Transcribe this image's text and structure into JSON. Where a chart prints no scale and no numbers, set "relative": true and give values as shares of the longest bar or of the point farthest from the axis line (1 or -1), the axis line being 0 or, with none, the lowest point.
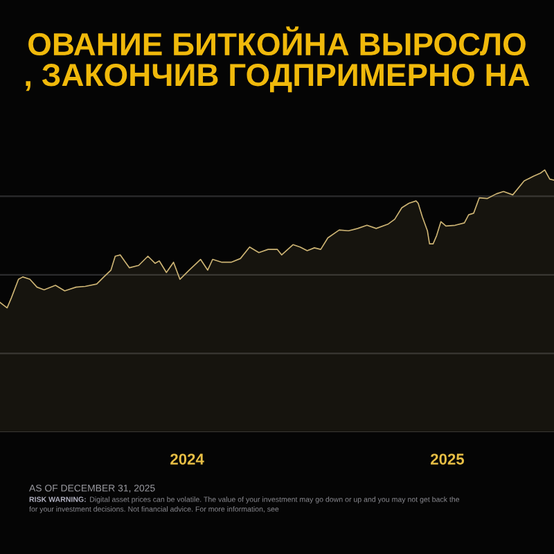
{
  "chart_data": {
    "type": "area",
    "title": "ОВАНИЕ БИТКОЙНА ВЫРОСЛО\n, ЗАКОНЧИВ ГОДПРИМЕРНО НА",
    "annotations": [
      "AS OF DECEMBER 31, 2025",
      "RISK WARNING:",
      "Digital asset prices can be volatile. The value of your investment may go down or up and you may not get back the",
      "for your investment decisions. Not financial advice. For more information, see"
    ],
    "relative": true,
    "color": "#cdb474",
    "grid": "y",
    "tick_labels": "x",
    "xlim": [
      "2023-04-13",
      "2025-05-31"
    ],
    "xticks": [
      "2024",
      "2025"
    ],
    "x": [
      "2023-04-13",
      "2023-04-23",
      "2023-04-29",
      "2023-05-09",
      "2023-05-15",
      "2023-05-25",
      "2023-06-04",
      "2023-06-14",
      "2023-06-30",
      "2023-07-13",
      "2023-07-29",
      "2023-08-11",
      "2023-08-27",
      "2023-09-06",
      "2023-09-16",
      "2023-09-22",
      "2023-09-29",
      "2023-10-05",
      "2023-10-12",
      "2023-10-25",
      "2023-11-07",
      "2023-11-17",
      "2023-11-23",
      "2023-12-03",
      "2023-12-13",
      "2023-12-22",
      "2024-01-04",
      "2024-01-20",
      "2024-01-30",
      "2024-02-06",
      "2024-02-19",
      "2024-03-03",
      "2024-03-16",
      "2024-03-29",
      "2024-04-11",
      "2024-04-24",
      "2024-05-07",
      "2024-05-13",
      "2024-05-29",
      "2024-06-08",
      "2024-06-18",
      "2024-06-28",
      "2024-07-07",
      "2024-07-17",
      "2024-08-02",
      "2024-08-15",
      "2024-08-28",
      "2024-09-10",
      "2024-09-23",
      "2024-10-10",
      "2024-10-19",
      "2024-10-29",
      "2024-11-08",
      "2024-11-18",
      "2024-11-21",
      "2024-11-27",
      "2024-12-04",
      "2024-12-07",
      "2024-12-12",
      "2024-12-17",
      "2024-12-23",
      "2024-12-30",
      "2025-01-12",
      "2025-01-25",
      "2025-01-31",
      "2025-02-07",
      "2025-02-15",
      "2025-02-26",
      "2025-03-11",
      "2025-03-21",
      "2025-04-03",
      "2025-04-19",
      "2025-05-02",
      "2025-05-12",
      "2025-05-18",
      "2025-05-25",
      "2025-05-31"
    ],
    "values": [
      0.495,
      0.474,
      0.512,
      0.583,
      0.592,
      0.583,
      0.553,
      0.543,
      0.56,
      0.539,
      0.553,
      0.556,
      0.565,
      0.592,
      0.618,
      0.671,
      0.676,
      0.653,
      0.627,
      0.636,
      0.671,
      0.644,
      0.653,
      0.609,
      0.648,
      0.583,
      0.618,
      0.659,
      0.618,
      0.659,
      0.648,
      0.648,
      0.662,
      0.706,
      0.685,
      0.697,
      0.697,
      0.676,
      0.715,
      0.706,
      0.692,
      0.703,
      0.697,
      0.741,
      0.771,
      0.768,
      0.777,
      0.789,
      0.777,
      0.794,
      0.812,
      0.856,
      0.873,
      0.882,
      0.873,
      0.82,
      0.768,
      0.718,
      0.718,
      0.75,
      0.803,
      0.786,
      0.789,
      0.798,
      0.829,
      0.835,
      0.894,
      0.891,
      0.909,
      0.918,
      0.905,
      0.958,
      0.976,
      0.988,
      1.0,
      0.965,
      0.961
    ]
  }
}
